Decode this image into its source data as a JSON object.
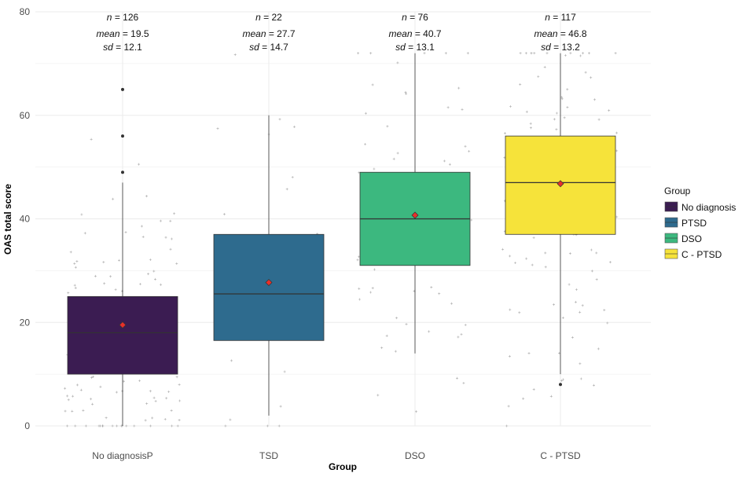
{
  "chart_data": {
    "type": "box",
    "title": "",
    "xlabel": "Group",
    "ylabel": "OAS total score",
    "ylim": [
      0,
      80
    ],
    "yticks": [
      0,
      20,
      40,
      60,
      80
    ],
    "grid": true,
    "categories": [
      "No diagnosisP",
      "TSD",
      "DSO",
      "C - PTSD"
    ],
    "legend": {
      "title": "Group",
      "position": "right",
      "entries": [
        "No diagnosis",
        "PTSD",
        "DSO",
        "C - PTSD"
      ]
    },
    "colors": [
      "#3b1c52",
      "#2e6b8e",
      "#3cb87f",
      "#f6e33a"
    ],
    "mean_marker_color": "#e8302a",
    "boxes": [
      {
        "q1": 10,
        "median": 18,
        "q3": 25,
        "whisker_low": 0,
        "whisker_high": 47,
        "outliers": [
          49,
          56,
          65
        ],
        "mean": 19.5
      },
      {
        "q1": 16.5,
        "median": 25.5,
        "q3": 37,
        "whisker_low": 2,
        "whisker_high": 60,
        "outliers": [],
        "mean": 27.7
      },
      {
        "q1": 31,
        "median": 40,
        "q3": 49,
        "whisker_low": 14,
        "whisker_high": 72,
        "outliers": [],
        "mean": 40.7
      },
      {
        "q1": 37,
        "median": 47,
        "q3": 56,
        "whisker_low": 10,
        "whisker_high": 72,
        "outliers": [
          8
        ],
        "mean": 46.8
      }
    ],
    "annotations": [
      {
        "n": "126",
        "mean": "19.5",
        "sd": "12.1"
      },
      {
        "n": "22",
        "mean": "27.7",
        "sd": "14.7"
      },
      {
        "n": "76",
        "mean": "40.7",
        "sd": "13.1"
      },
      {
        "n": "117",
        "mean": "46.8",
        "sd": "13.2"
      }
    ],
    "annotation_labels": {
      "n": "n",
      "mean": "mean",
      "sd": "sd"
    }
  }
}
